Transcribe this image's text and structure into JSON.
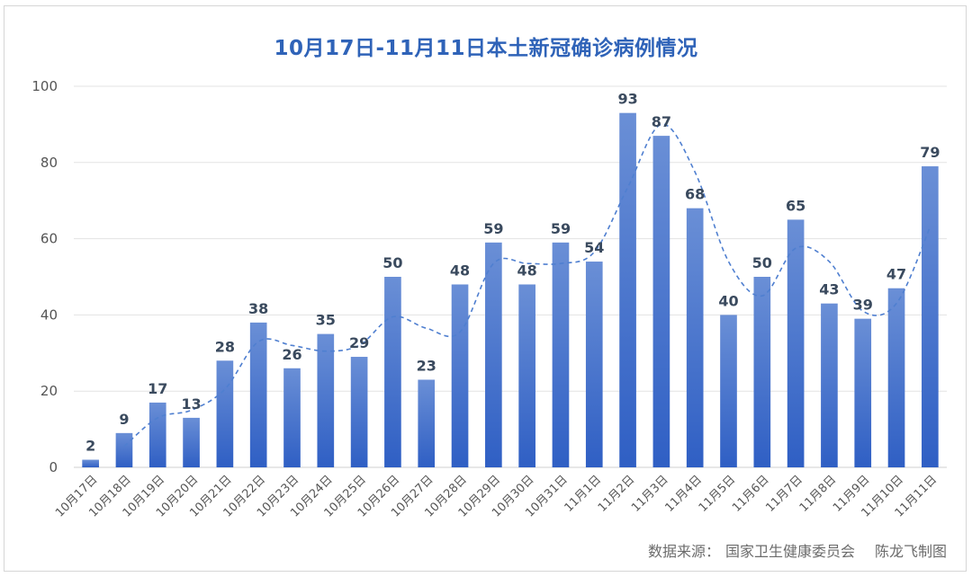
{
  "chart_data": {
    "type": "bar",
    "title": "10月17日-11月11日本土新冠确诊病例情况",
    "categories": [
      "10月17日",
      "10月18日",
      "10月19日",
      "10月20日",
      "10月21日",
      "10月22日",
      "10月23日",
      "10月24日",
      "10月25日",
      "10月26日",
      "10月27日",
      "10月28日",
      "10月29日",
      "10月30日",
      "10月31日",
      "11月1日",
      "11月2日",
      "11月3日",
      "11月4日",
      "11月5日",
      "11月6日",
      "11月7日",
      "11月8日",
      "11月9日",
      "11月10日",
      "11月11日"
    ],
    "values": [
      2,
      9,
      17,
      13,
      28,
      38,
      26,
      35,
      29,
      50,
      23,
      48,
      59,
      48,
      59,
      54,
      93,
      87,
      68,
      40,
      50,
      65,
      43,
      39,
      47,
      79
    ],
    "trendline": {
      "type": "moving_average",
      "period": 2,
      "style": "dashed"
    },
    "ylim": [
      0,
      100
    ],
    "yticks": [
      0,
      20,
      40,
      60,
      80,
      100
    ],
    "xlabel": "",
    "ylabel": "",
    "grid": true,
    "legend": "none",
    "colors": {
      "bar_top": "#6a8fd6",
      "bar_bottom": "#2f5fc4",
      "trend": "#4f7fd0",
      "label": "#3a4a5e",
      "axis_text": "#555555",
      "grid": "#e3e3e3",
      "title": "#2f63b8"
    }
  },
  "source": {
    "label": "数据来源：",
    "org": "国家卫生健康委员会",
    "author": "陈龙飞制图"
  }
}
